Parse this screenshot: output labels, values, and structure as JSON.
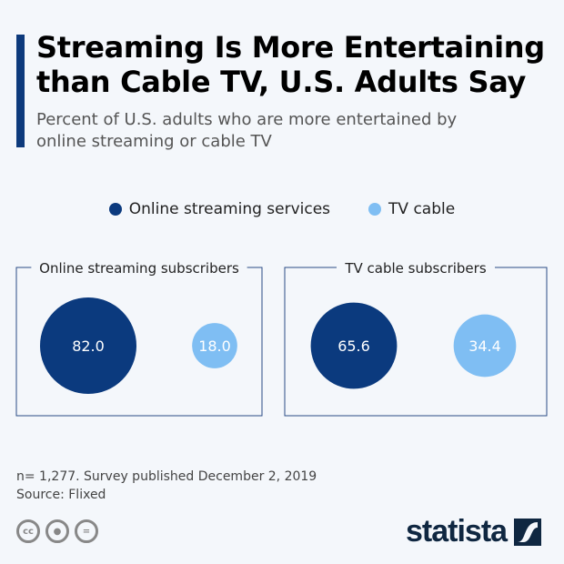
{
  "header": {
    "title": "Streaming Is More Entertaining than Cable TV, U.S. Adults Say",
    "subtitle": "Percent of U.S. adults who are more entertained by online streaming or cable TV"
  },
  "chart_data": {
    "type": "bubble",
    "title": "Streaming Is More Entertaining than Cable TV, U.S. Adults Say",
    "subtitle": "Percent of U.S. adults who are more entertained by online streaming or cable TV",
    "legend": {
      "position": "top-center",
      "entries": [
        {
          "name": "Online streaming services",
          "color": "#0b3a7e"
        },
        {
          "name": "TV cable",
          "color": "#7fbef3"
        }
      ]
    },
    "panels": [
      {
        "label": "Online streaming subscribers",
        "values": [
          {
            "series": "Online streaming services",
            "value": 82.0
          },
          {
            "series": "TV cable",
            "value": 18.0
          }
        ]
      },
      {
        "label": "TV cable subscribers",
        "values": [
          {
            "series": "Online streaming services",
            "value": 65.6
          },
          {
            "series": "TV cable",
            "value": 34.4
          }
        ]
      }
    ],
    "unit": "percent"
  },
  "footer": {
    "note": "n= 1,277. Survey published December 2, 2019",
    "source": "Source: Flixed",
    "logo": "statista",
    "icons": [
      "cc-icon",
      "by-icon",
      "nd-icon"
    ]
  }
}
